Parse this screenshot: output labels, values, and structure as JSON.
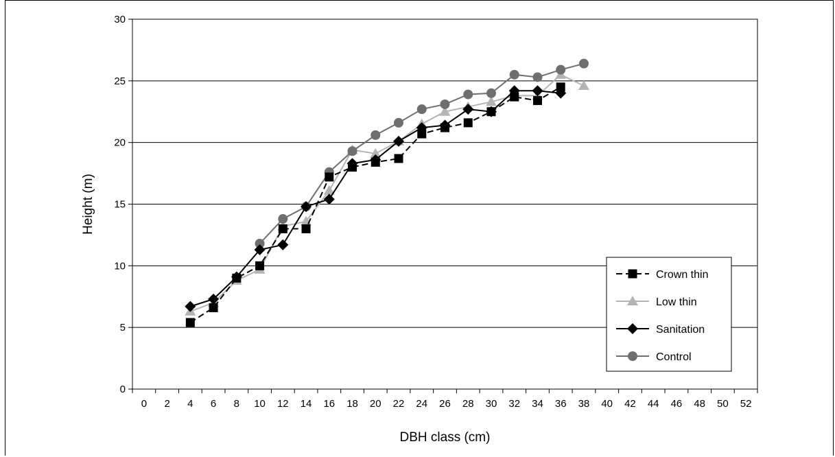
{
  "chart_data": {
    "type": "line",
    "title": "",
    "xlabel": "DBH class (cm)",
    "ylabel": "Height (m)",
    "xlim": [
      -1,
      53
    ],
    "ylim": [
      0,
      30
    ],
    "x_ticks": [
      0,
      2,
      4,
      6,
      8,
      10,
      12,
      14,
      16,
      18,
      20,
      22,
      24,
      26,
      28,
      30,
      32,
      34,
      36,
      38,
      40,
      42,
      44,
      46,
      48,
      50,
      52
    ],
    "y_ticks": [
      0,
      5,
      10,
      15,
      20,
      25,
      30
    ],
    "grid": "horizontal",
    "legend_position": "bottom-right",
    "series": [
      {
        "name": "Crown thin",
        "color": "#000000",
        "line": "dashed",
        "marker": "square",
        "x": [
          4,
          6,
          8,
          10,
          12,
          14,
          16,
          18,
          20,
          22,
          24,
          26,
          28,
          30,
          32,
          34,
          36
        ],
        "y": [
          5.4,
          6.6,
          9.0,
          10.0,
          13.0,
          13.0,
          17.2,
          18.0,
          18.4,
          18.7,
          20.7,
          21.2,
          21.6,
          22.5,
          23.7,
          23.4,
          24.5
        ]
      },
      {
        "name": "Low thin",
        "color": "#b4b4b4",
        "line": "solid",
        "marker": "triangle",
        "x": [
          4,
          6,
          8,
          10,
          12,
          14,
          16,
          18,
          20,
          22,
          24,
          26,
          28,
          30,
          32,
          34,
          36,
          38
        ],
        "y": [
          6.3,
          7.0,
          8.8,
          9.7,
          13.2,
          13.6,
          16.1,
          19.4,
          19.1,
          20.1,
          21.5,
          22.5,
          22.9,
          23.3,
          23.8,
          23.8,
          25.5,
          24.6
        ]
      },
      {
        "name": "Sanitation",
        "color": "#000000",
        "line": "solid",
        "marker": "diamond",
        "x": [
          4,
          6,
          8,
          10,
          12,
          14,
          16,
          18,
          20,
          22,
          24,
          26,
          28,
          30,
          32,
          34,
          36
        ],
        "y": [
          6.7,
          7.3,
          9.1,
          11.3,
          11.7,
          14.8,
          15.4,
          18.3,
          18.6,
          20.1,
          21.2,
          21.4,
          22.7,
          22.5,
          24.2,
          24.2,
          24.0
        ]
      },
      {
        "name": "Control",
        "color": "#6e6e6e",
        "line": "solid",
        "marker": "circle",
        "x": [
          10,
          12,
          14,
          16,
          18,
          20,
          22,
          24,
          26,
          28,
          30,
          32,
          34,
          36,
          38
        ],
        "y": [
          11.8,
          13.8,
          14.8,
          17.6,
          19.3,
          20.6,
          21.6,
          22.7,
          23.1,
          23.9,
          24.0,
          25.5,
          25.3,
          25.9,
          26.4
        ]
      }
    ]
  }
}
